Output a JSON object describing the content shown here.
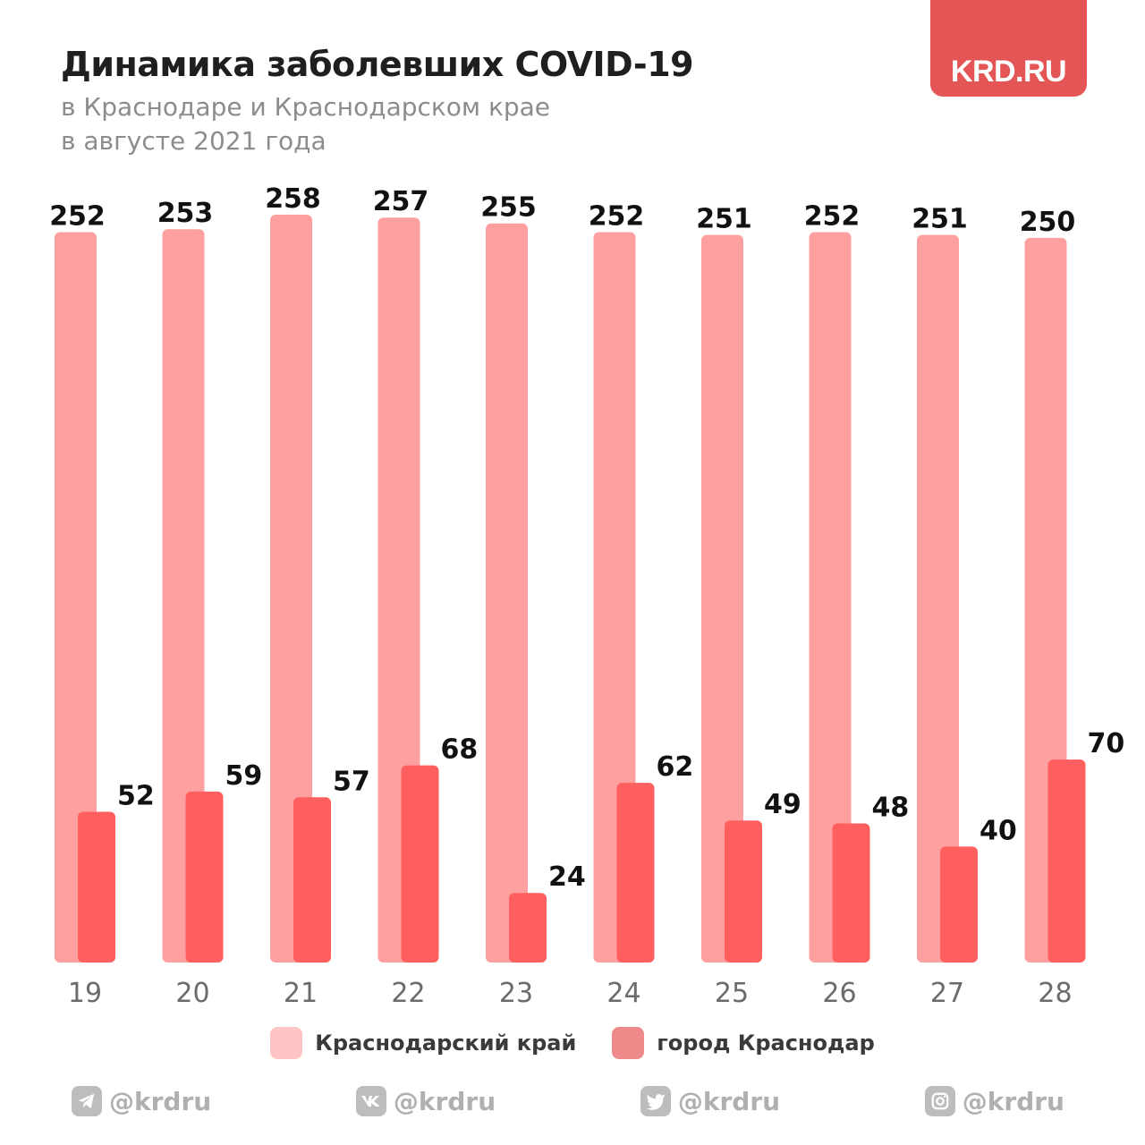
{
  "header": {
    "title": "Динамика заболевших COVID-19",
    "subtitle_line1": "в Краснодаре и Краснодарском крае",
    "subtitle_line2": "в августе 2021 года"
  },
  "logo": {
    "text": "KRD.RU",
    "color": "#e45555"
  },
  "chart_data": {
    "type": "bar",
    "categories": [
      "19",
      "20",
      "21",
      "22",
      "23",
      "24",
      "25",
      "26",
      "27",
      "28"
    ],
    "series": [
      {
        "name": "Краснодарский край",
        "color": "#ffa0a0",
        "values": [
          252,
          253,
          258,
          257,
          255,
          252,
          251,
          252,
          251,
          250
        ]
      },
      {
        "name": "город Краснодар",
        "color": "#ff5f5f",
        "values": [
          52,
          59,
          57,
          68,
          24,
          62,
          49,
          48,
          40,
          70
        ]
      }
    ],
    "title": "Динамика заболевших COVID-19",
    "grid": false,
    "legend_position": "bottom",
    "ylim": [
      0,
      258
    ]
  },
  "legend": {
    "items": [
      {
        "label": "Краснодарский край",
        "color": "#ffc4c4"
      },
      {
        "label": "город Краснодар",
        "color": "#ee8a8a"
      }
    ]
  },
  "socials": [
    {
      "icon": "telegram-icon",
      "handle": "@krdru"
    },
    {
      "icon": "vk-icon",
      "handle": "@krdru"
    },
    {
      "icon": "twitter-icon",
      "handle": "@krdru"
    },
    {
      "icon": "instagram-icon",
      "handle": "@krdru"
    }
  ]
}
